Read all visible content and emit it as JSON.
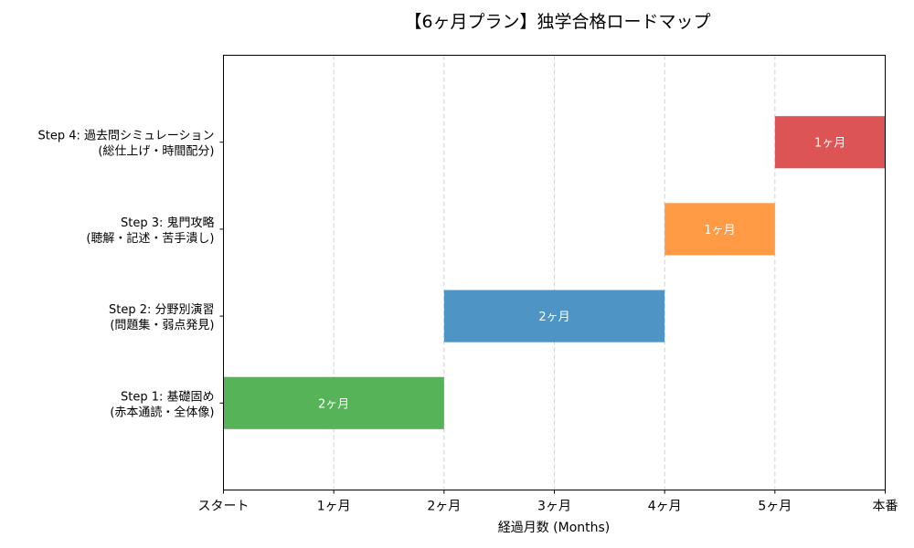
{
  "chart_data": {
    "type": "bar",
    "orientation": "horizontal-gantt",
    "title": "【6ヶ月プラン】独学合格ロードマップ",
    "xlabel": "経過月数 (Months)",
    "ylabel": "",
    "xlim": [
      0,
      6
    ],
    "ylim": [
      -1,
      4
    ],
    "grid": "x-dashed",
    "x_ticks": [
      {
        "value": 0,
        "label": "スタート"
      },
      {
        "value": 1,
        "label": "1ヶ月"
      },
      {
        "value": 2,
        "label": "2ヶ月"
      },
      {
        "value": 3,
        "label": "3ヶ月"
      },
      {
        "value": 4,
        "label": "4ヶ月"
      },
      {
        "value": 5,
        "label": "5ヶ月"
      },
      {
        "value": 6,
        "label": "本番"
      }
    ],
    "tasks": [
      {
        "line1": "Step 1: 基礎固め",
        "line2": "(赤本通読・全体像)",
        "start": 0,
        "duration": 2,
        "label": "2ヶ月",
        "color": "#57b357"
      },
      {
        "line1": "Step 2: 分野別演習",
        "line2": "(問題集・弱点発見)",
        "start": 2,
        "duration": 2,
        "label": "2ヶ月",
        "color": "#4e94c4"
      },
      {
        "line1": "Step 3: 鬼門攻略",
        "line2": "(聴解・記述・苦手潰し)",
        "start": 4,
        "duration": 1,
        "label": "1ヶ月",
        "color": "#ff9b45"
      },
      {
        "line1": "Step 4: 過去問シミュレーション",
        "line2": "(総仕上げ・時間配分)",
        "start": 5,
        "duration": 1,
        "label": "1ヶ月",
        "color": "#dd5454"
      }
    ]
  }
}
